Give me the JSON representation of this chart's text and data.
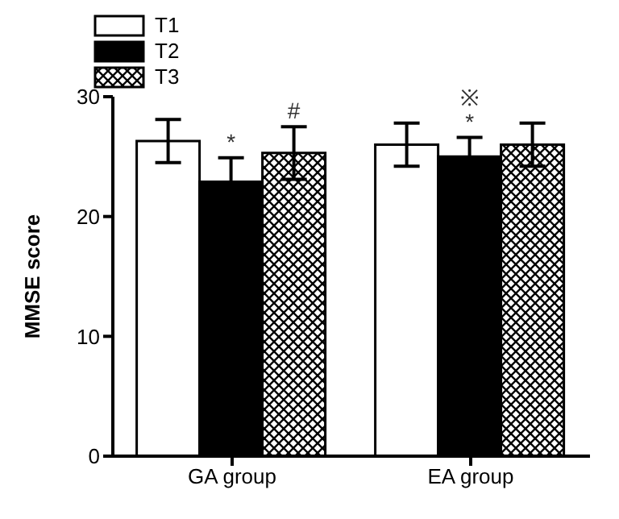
{
  "chart_data": {
    "type": "bar",
    "ylabel": "MMSE score",
    "categories": [
      "GA group",
      "EA group"
    ],
    "series": [
      {
        "name": "T1",
        "color": "#ffffff",
        "values": [
          26.3,
          26.0
        ],
        "errors": [
          1.8,
          1.8
        ]
      },
      {
        "name": "T2",
        "color": "#000000",
        "values": [
          22.9,
          25.0
        ],
        "errors": [
          2.0,
          1.6
        ]
      },
      {
        "name": "T3",
        "color": "#000000",
        "values": [
          25.3,
          26.0
        ],
        "errors": [
          2.2,
          1.8
        ]
      }
    ],
    "ylim": [
      0,
      30
    ],
    "yticks": [
      0,
      10,
      20,
      30
    ],
    "grid": false,
    "legend": "top left",
    "annotations": [
      {
        "text": "*",
        "x": "GA group",
        "y": 22.9
      },
      {
        "text": "#",
        "x": "GA group",
        "y": 25.3
      },
      {
        "text": "*",
        "x": "EA group",
        "y": 25.0
      },
      {
        "text": "※",
        "x": "EA group",
        "y": 25.0
      }
    ]
  }
}
